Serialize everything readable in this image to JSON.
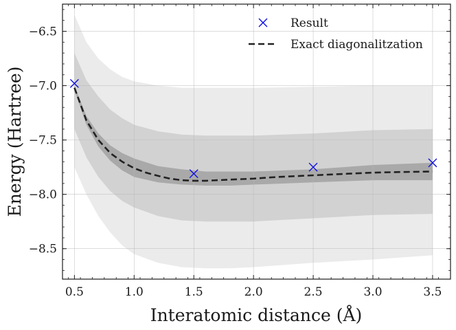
{
  "chart_data": {
    "type": "line",
    "xlabel": "Interatomic distance (Å)",
    "ylabel": "Energy (Hartree)",
    "xlim": [
      0.4,
      3.65
    ],
    "ylim": [
      -8.78,
      -6.25
    ],
    "grid": true,
    "legend_position": "top-right",
    "x_ticks": [
      0.5,
      1.0,
      1.5,
      2.0,
      2.5,
      3.0,
      3.5
    ],
    "x_tick_labels": [
      "0.5",
      "1.0",
      "1.5",
      "2.0",
      "2.5",
      "3.0",
      "3.5"
    ],
    "y_ticks": [
      -6.5,
      -7.0,
      -7.5,
      -8.0,
      -8.5
    ],
    "y_tick_labels": [
      "−6.5",
      "−7.0",
      "−7.5",
      "−8.0",
      "−8.5"
    ],
    "series": [
      {
        "name": "Exact diagonalitzation",
        "style": "dashed",
        "color": "#222222",
        "x": [
          0.5,
          0.6,
          0.7,
          0.8,
          0.9,
          1.0,
          1.1,
          1.2,
          1.3,
          1.4,
          1.5,
          1.6,
          1.8,
          2.0,
          2.2,
          2.5,
          2.8,
          3.0,
          3.2,
          3.5
        ],
        "y": [
          -7.02,
          -7.32,
          -7.5,
          -7.62,
          -7.7,
          -7.76,
          -7.8,
          -7.83,
          -7.855,
          -7.87,
          -7.875,
          -7.875,
          -7.865,
          -7.855,
          -7.84,
          -7.825,
          -7.81,
          -7.8,
          -7.795,
          -7.79
        ]
      },
      {
        "name": "Result",
        "style": "marker-x",
        "color": "#1010e0",
        "x": [
          0.5,
          1.5,
          2.5,
          3.5
        ],
        "y": [
          -6.98,
          -7.81,
          -7.75,
          -7.71
        ]
      }
    ],
    "bands": [
      {
        "name": "outer-band",
        "color": "#ebebeb",
        "x": [
          0.5,
          0.6,
          0.7,
          0.8,
          0.9,
          1.0,
          1.2,
          1.4,
          1.6,
          1.8,
          2.0,
          2.5,
          3.0,
          3.5
        ],
        "upper": [
          -6.35,
          -6.6,
          -6.75,
          -6.85,
          -6.92,
          -6.96,
          -7.0,
          -7.02,
          -7.02,
          -7.02,
          -7.02,
          -7.01,
          -7.0,
          -7.0
        ],
        "lower": [
          -7.75,
          -8.0,
          -8.2,
          -8.35,
          -8.47,
          -8.55,
          -8.63,
          -8.67,
          -8.68,
          -8.68,
          -8.67,
          -8.63,
          -8.6,
          -8.56
        ]
      },
      {
        "name": "middle-band",
        "color": "#d2d2d2",
        "x": [
          0.5,
          0.6,
          0.7,
          0.8,
          0.9,
          1.0,
          1.2,
          1.4,
          1.6,
          1.8,
          2.0,
          2.5,
          3.0,
          3.5
        ],
        "upper": [
          -6.7,
          -6.95,
          -7.1,
          -7.22,
          -7.3,
          -7.36,
          -7.42,
          -7.45,
          -7.46,
          -7.46,
          -7.46,
          -7.44,
          -7.41,
          -7.4
        ],
        "lower": [
          -7.4,
          -7.66,
          -7.84,
          -7.97,
          -8.06,
          -8.12,
          -8.2,
          -8.24,
          -8.25,
          -8.25,
          -8.25,
          -8.22,
          -8.19,
          -8.18
        ]
      },
      {
        "name": "inner-band",
        "color": "#a9a9a9",
        "x": [
          0.5,
          0.6,
          0.7,
          0.8,
          0.9,
          1.0,
          1.2,
          1.4,
          1.6,
          1.8,
          2.0,
          2.5,
          3.0,
          3.5
        ],
        "upper": [
          -7.0,
          -7.28,
          -7.44,
          -7.55,
          -7.62,
          -7.67,
          -7.74,
          -7.77,
          -7.79,
          -7.79,
          -7.79,
          -7.77,
          -7.73,
          -7.71
        ],
        "lower": [
          -7.04,
          -7.36,
          -7.56,
          -7.69,
          -7.78,
          -7.84,
          -7.89,
          -7.91,
          -7.92,
          -7.92,
          -7.91,
          -7.89,
          -7.87,
          -7.87
        ]
      }
    ],
    "legend": {
      "result_label": "Result",
      "exact_label": "Exact diagonalitzation"
    }
  }
}
